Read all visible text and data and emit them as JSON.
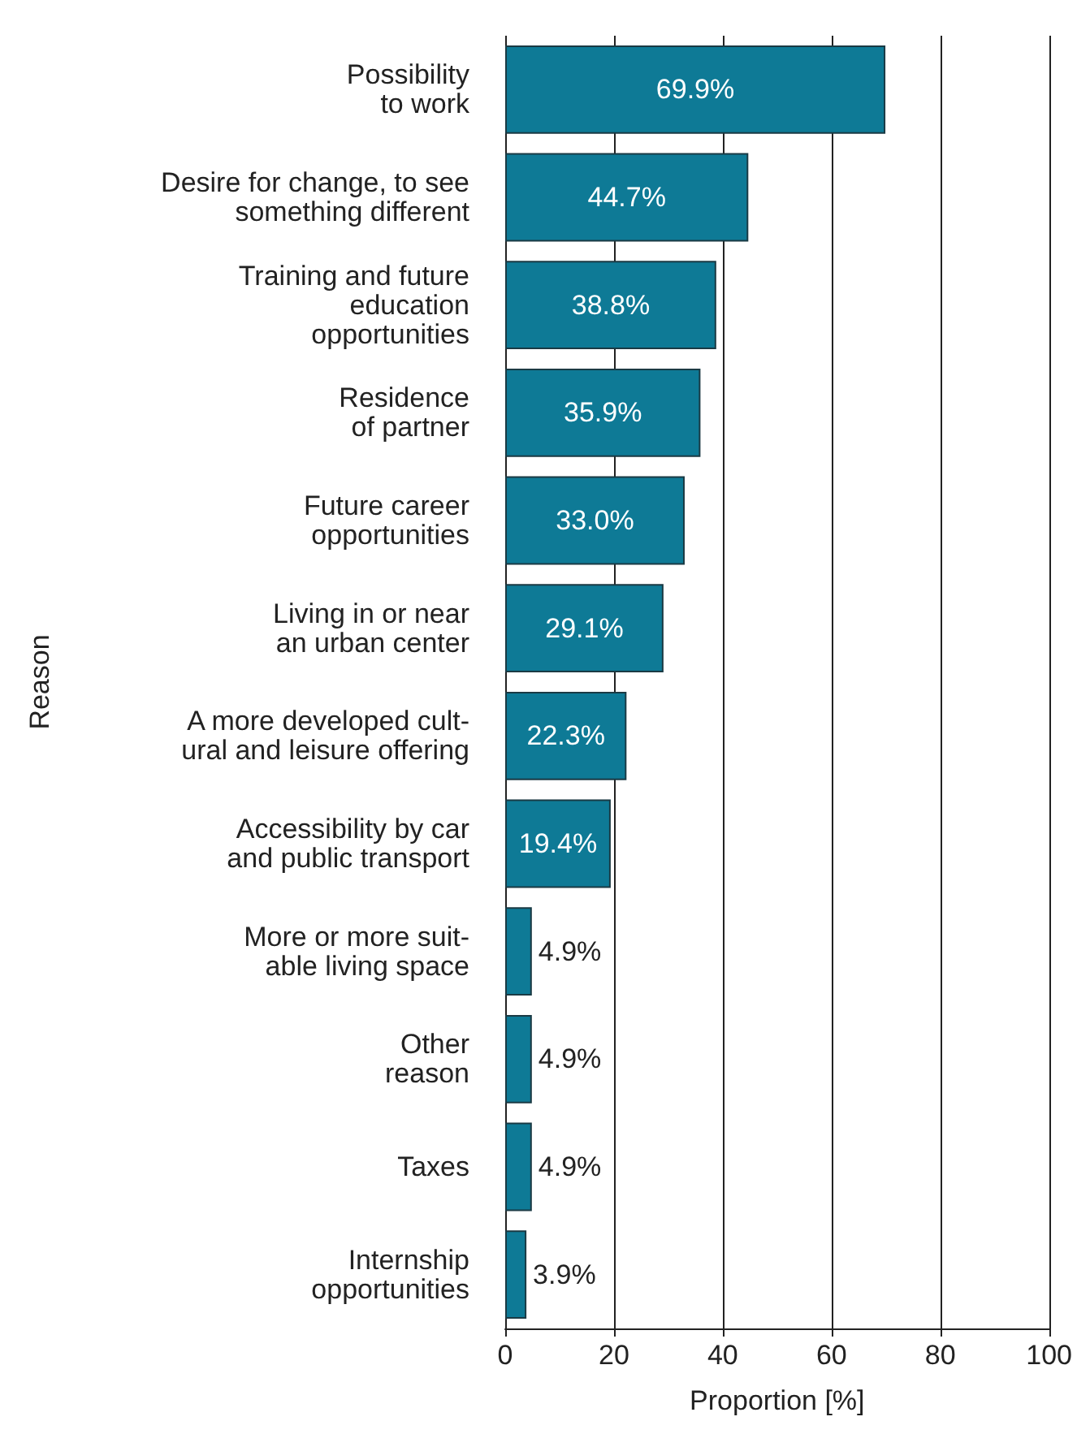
{
  "chart_data": {
    "type": "bar",
    "orientation": "horizontal",
    "xlabel": "Proportion [%]",
    "ylabel": "Reason",
    "categories": [
      "Possibility\nto work",
      "Desire for change, to see\nsomething different",
      "Training and future\neducation\nopportunities",
      "Residence\nof partner",
      "Future career\nopportunities",
      "Living in or near\nan urban center",
      "A more developed cult-\nural and leisure offering",
      "Accessibility by car\nand public transport",
      "More or more suit-\nable living space",
      "Other\nreason",
      "Taxes",
      "Internship\nopportunities"
    ],
    "values": [
      69.9,
      44.7,
      38.8,
      35.9,
      33.0,
      29.1,
      22.3,
      19.4,
      4.9,
      4.9,
      4.9,
      3.9
    ],
    "value_labels": [
      "69.9%",
      "44.7%",
      "38.8%",
      "35.9%",
      "33.0%",
      "29.1%",
      "22.3%",
      "19.4%",
      "4.9%",
      "4.9%",
      "4.9%",
      "3.9%"
    ],
    "color": "#0e7a96",
    "xlim": [
      0,
      100
    ],
    "xticks": [
      0,
      20,
      40,
      60,
      80,
      100
    ],
    "grid": "x"
  }
}
